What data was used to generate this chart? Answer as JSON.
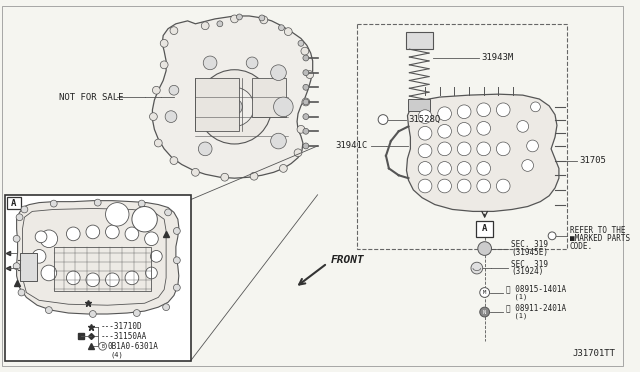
{
  "bg_color": "#f5f5f0",
  "fig_width": 6.4,
  "fig_height": 3.72,
  "dpi": 100,
  "lc": "#555555",
  "tc": "#222222",
  "bc": "#333333",
  "diagram_id": "J31701TT",
  "title_text": "NOT FOR SALE",
  "front_label": "FRONT",
  "part_31943M": "31943M",
  "part_31941C": "31941C",
  "part_31705": "31705",
  "part_31528Q": "31528Q",
  "label_secA_top": "SEC. 319",
  "label_secA_bot": "(31945E)",
  "label_secB_top": "SEC. 319",
  "label_secB_bot": "(31924)",
  "label_M": "Ⓜ 08915-1401A",
  "label_M2": "  (1)",
  "label_N": "Ⓝ 08911-2401A",
  "label_N2": "  (1)",
  "refer_line1": "REFER TO THE",
  "refer_line2": "■MARKED PARTS",
  "refer_line3": "CODE.",
  "inset_label_31710D": "★ ---31710D",
  "inset_label_31150AA": "■ ---◆---31150AA",
  "inset_label_0B1A0": "▲ ---Ⓑ 0B1A0-6301A",
  "inset_label_0B1A0_b": "         (4)"
}
